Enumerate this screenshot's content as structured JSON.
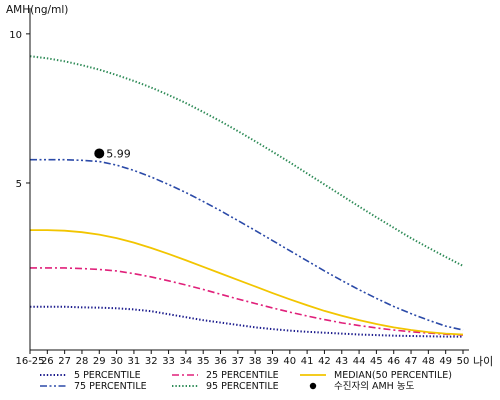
{
  "chart_data": {
    "type": "line",
    "ylabel": "AMH(ng/ml)",
    "xlabel": "나이",
    "x_categories": [
      "16-25",
      "26",
      "27",
      "28",
      "29",
      "30",
      "31",
      "32",
      "33",
      "34",
      "35",
      "36",
      "37",
      "38",
      "39",
      "40",
      "41",
      "42",
      "43",
      "44",
      "45",
      "46",
      "47",
      "48",
      "49",
      "50"
    ],
    "y_ticks": [
      5,
      10
    ],
    "ylim": [
      -0.6,
      10.8
    ],
    "grid": false,
    "series": [
      {
        "name": "5 PERCENTILE",
        "color": "#1a1a8c",
        "style": "dotted",
        "values": [
          0.85,
          0.85,
          0.85,
          0.83,
          0.82,
          0.8,
          0.76,
          0.7,
          0.6,
          0.5,
          0.4,
          0.32,
          0.24,
          0.16,
          0.1,
          0.05,
          0.01,
          -0.02,
          -0.05,
          -0.08,
          -0.1,
          -0.12,
          -0.13,
          -0.14,
          -0.15,
          -0.15
        ]
      },
      {
        "name": "25 PERCENTILE",
        "color": "#e0207a",
        "style": "dashdot",
        "values": [
          2.15,
          2.15,
          2.15,
          2.13,
          2.1,
          2.05,
          1.96,
          1.85,
          1.72,
          1.58,
          1.43,
          1.27,
          1.11,
          0.96,
          0.81,
          0.67,
          0.54,
          0.42,
          0.31,
          0.22,
          0.14,
          0.07,
          0.01,
          -0.03,
          -0.07,
          -0.1
        ]
      },
      {
        "name": "MEDIAN(50 PERCENTILE)",
        "color": "#f2c500",
        "style": "solid",
        "values": [
          3.42,
          3.42,
          3.4,
          3.35,
          3.27,
          3.15,
          3.0,
          2.82,
          2.62,
          2.41,
          2.19,
          1.97,
          1.75,
          1.53,
          1.31,
          1.1,
          0.9,
          0.71,
          0.55,
          0.4,
          0.27,
          0.16,
          0.07,
          0.0,
          -0.05,
          -0.08
        ]
      },
      {
        "name": "75 PERCENTILE",
        "color": "#2b4aa8",
        "style": "dashdotdot",
        "values": [
          5.78,
          5.78,
          5.78,
          5.76,
          5.72,
          5.6,
          5.42,
          5.2,
          4.95,
          4.68,
          4.38,
          4.07,
          3.74,
          3.41,
          3.07,
          2.73,
          2.39,
          2.05,
          1.73,
          1.42,
          1.13,
          0.86,
          0.62,
          0.4,
          0.2,
          0.07
        ]
      },
      {
        "name": "95 PERCENTILE",
        "color": "#2e8b57",
        "style": "dotted",
        "values": [
          9.25,
          9.18,
          9.08,
          8.95,
          8.8,
          8.62,
          8.42,
          8.2,
          7.95,
          7.68,
          7.38,
          7.07,
          6.74,
          6.4,
          6.05,
          5.69,
          5.32,
          4.95,
          4.58,
          4.21,
          3.85,
          3.5,
          3.15,
          2.83,
          2.52,
          2.22
        ]
      }
    ],
    "point": {
      "name": "수진자의 AMH 농도",
      "x": "29",
      "y": 5.99,
      "label": "5.99",
      "color": "#000000"
    },
    "legend": {
      "placement": "bottom",
      "order": [
        "5 PERCENTILE",
        "25 PERCENTILE",
        "MEDIAN(50 PERCENTILE)",
        "75 PERCENTILE",
        "95 PERCENTILE",
        "수진자의 AMH 농도"
      ]
    }
  }
}
